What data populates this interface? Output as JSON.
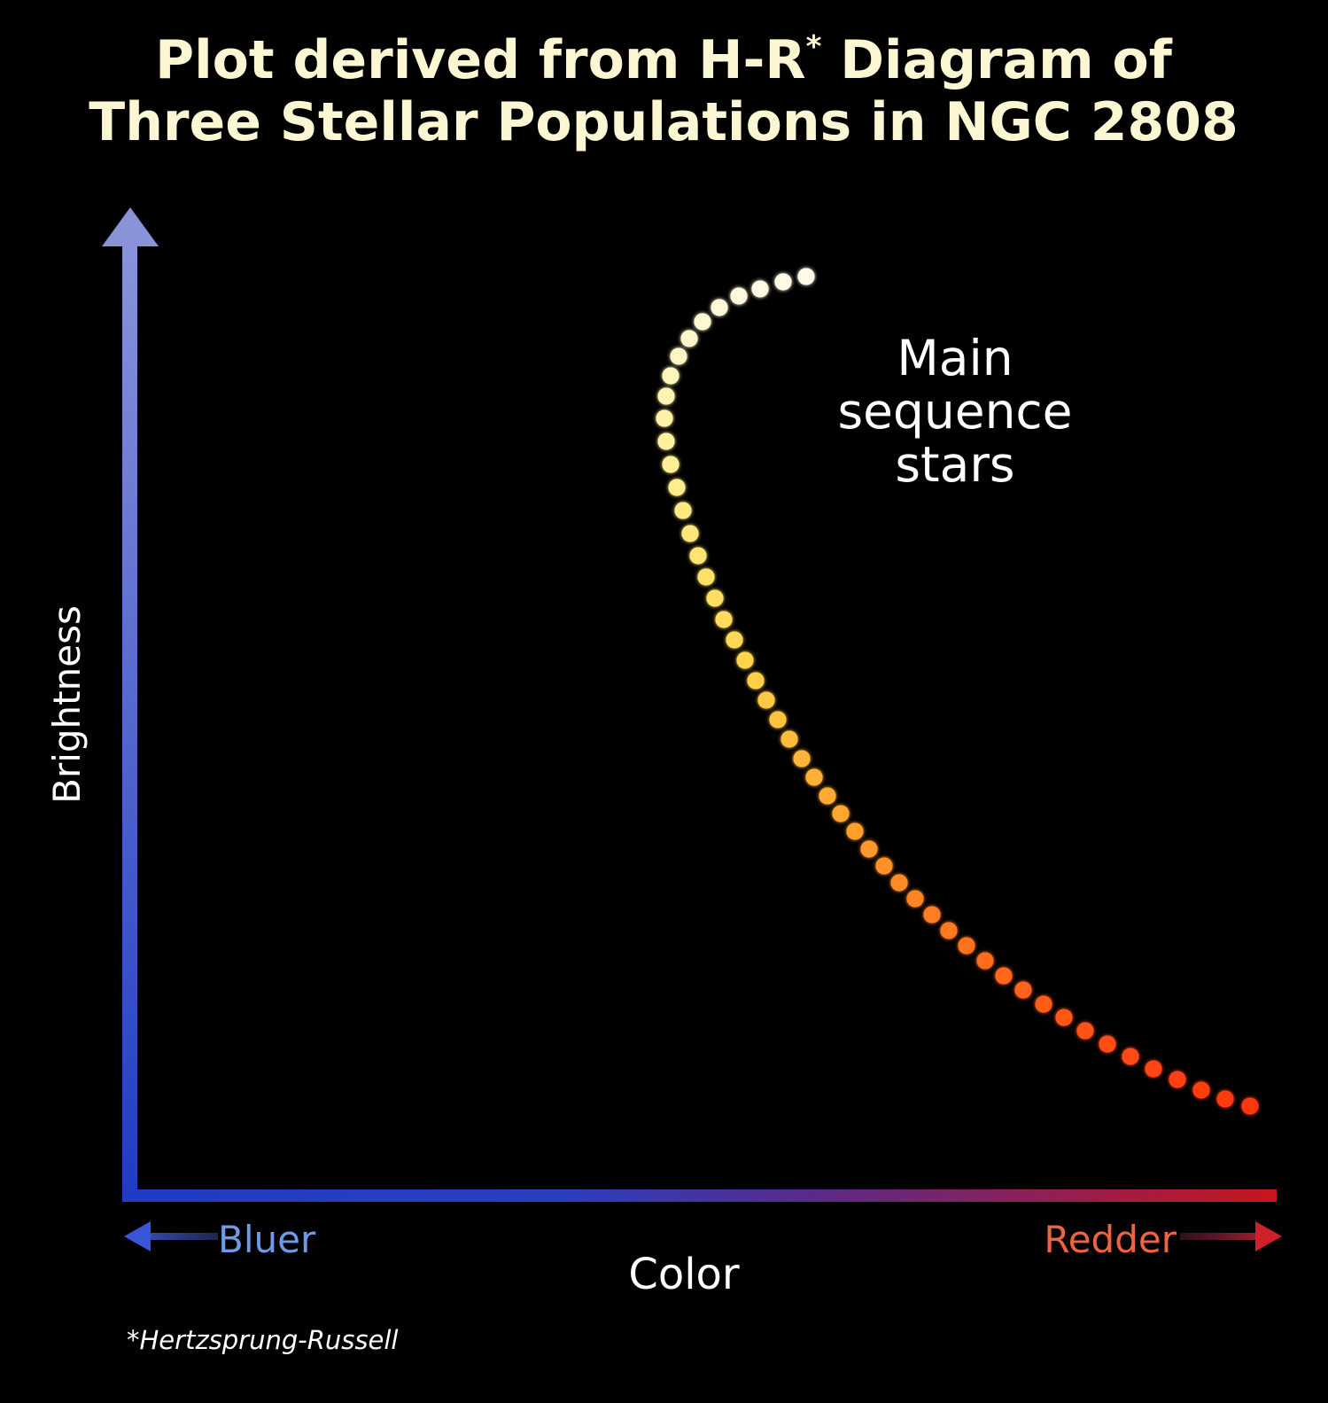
{
  "chart_data": {
    "type": "scatter",
    "title_line1": "Plot derived from H-R",
    "title_sup": "*",
    "title_line1_end": " Diagram of",
    "title_line2": "Three Stellar Populations in NGC 2808",
    "xlabel": "Color",
    "ylabel": "Brightness",
    "x_left_label": "Bluer",
    "x_right_label": "Redder",
    "annotation": [
      "Main",
      "sequence",
      "stars"
    ],
    "footnote": "*Hertzsprung-Russell",
    "grid": false,
    "series": [
      {
        "values": [
          [
            910,
            312
          ],
          [
            884,
            318
          ],
          [
            858,
            326
          ],
          [
            834,
            334
          ],
          [
            812,
            347
          ],
          [
            793,
            363
          ],
          [
            778,
            382
          ],
          [
            766,
            402
          ],
          [
            757,
            424
          ],
          [
            752,
            447
          ],
          [
            750,
            472
          ],
          [
            752,
            498
          ],
          [
            757,
            524
          ],
          [
            764,
            550
          ],
          [
            771,
            576
          ],
          [
            779,
            602
          ],
          [
            788,
            627
          ],
          [
            797,
            651
          ],
          [
            807,
            675
          ],
          [
            817,
            699
          ],
          [
            829,
            722
          ],
          [
            841,
            745
          ],
          [
            853,
            768
          ],
          [
            865,
            790
          ],
          [
            878,
            812
          ],
          [
            891,
            834
          ],
          [
            905,
            856
          ],
          [
            919,
            877
          ],
          [
            934,
            898
          ],
          [
            949,
            918
          ],
          [
            965,
            938
          ],
          [
            981,
            958
          ],
          [
            998,
            977
          ],
          [
            1015,
            996
          ],
          [
            1033,
            1014
          ],
          [
            1052,
            1032
          ],
          [
            1071,
            1050
          ],
          [
            1091,
            1067
          ],
          [
            1112,
            1084
          ],
          [
            1133,
            1101
          ],
          [
            1155,
            1117
          ],
          [
            1178,
            1133
          ],
          [
            1201,
            1148
          ],
          [
            1225,
            1163
          ],
          [
            1250,
            1178
          ],
          [
            1276,
            1192
          ],
          [
            1302,
            1206
          ],
          [
            1329,
            1218
          ],
          [
            1356,
            1230
          ],
          [
            1383,
            1240
          ],
          [
            1411,
            1248
          ]
        ]
      },
      {
        "values": [
          [
            910,
            312
          ],
          [
            884,
            318
          ],
          [
            858,
            326
          ],
          [
            834,
            334
          ],
          [
            812,
            347
          ],
          [
            793,
            363
          ],
          [
            778,
            382
          ],
          [
            766,
            402
          ],
          [
            757,
            424
          ],
          [
            752,
            447
          ],
          [
            750,
            472
          ],
          [
            752,
            498
          ],
          [
            757,
            524
          ],
          [
            764,
            550
          ],
          [
            771,
            576
          ],
          [
            779,
            602
          ],
          [
            788,
            627
          ],
          [
            797,
            651
          ],
          [
            807,
            675
          ],
          [
            817,
            699
          ],
          [
            829,
            722
          ],
          [
            841,
            745
          ],
          [
            853,
            768
          ],
          [
            865,
            790
          ],
          [
            878,
            812
          ],
          [
            891,
            834
          ],
          [
            905,
            856
          ],
          [
            919,
            877
          ],
          [
            934,
            898
          ],
          [
            949,
            918
          ],
          [
            965,
            938
          ],
          [
            981,
            958
          ],
          [
            998,
            977
          ],
          [
            1015,
            996
          ],
          [
            1033,
            1014
          ],
          [
            1052,
            1032
          ],
          [
            1071,
            1050
          ],
          [
            1091,
            1067
          ],
          [
            1112,
            1084
          ],
          [
            1133,
            1101
          ],
          [
            1155,
            1117
          ],
          [
            1178,
            1133
          ],
          [
            1201,
            1148
          ],
          [
            1225,
            1163
          ],
          [
            1250,
            1178
          ],
          [
            1276,
            1192
          ],
          [
            1302,
            1206
          ],
          [
            1329,
            1218
          ],
          [
            1356,
            1230
          ],
          [
            1383,
            1240
          ],
          [
            1411,
            1248
          ]
        ]
      },
      {
        "values": [
          [
            910,
            312
          ],
          [
            884,
            318
          ],
          [
            858,
            326
          ],
          [
            834,
            334
          ],
          [
            812,
            347
          ],
          [
            793,
            363
          ],
          [
            778,
            382
          ],
          [
            766,
            402
          ],
          [
            757,
            424
          ],
          [
            752,
            447
          ],
          [
            750,
            472
          ],
          [
            752,
            498
          ],
          [
            757,
            524
          ],
          [
            764,
            550
          ],
          [
            771,
            576
          ],
          [
            779,
            602
          ],
          [
            788,
            627
          ],
          [
            797,
            651
          ],
          [
            807,
            675
          ],
          [
            817,
            699
          ],
          [
            829,
            722
          ],
          [
            841,
            745
          ],
          [
            853,
            768
          ],
          [
            865,
            790
          ],
          [
            878,
            812
          ],
          [
            891,
            834
          ],
          [
            905,
            856
          ],
          [
            919,
            877
          ],
          [
            934,
            898
          ],
          [
            949,
            918
          ],
          [
            965,
            938
          ],
          [
            981,
            958
          ],
          [
            998,
            977
          ],
          [
            1015,
            996
          ],
          [
            1033,
            1014
          ],
          [
            1052,
            1032
          ],
          [
            1071,
            1050
          ],
          [
            1091,
            1067
          ],
          [
            1112,
            1084
          ],
          [
            1133,
            1101
          ],
          [
            1155,
            1117
          ],
          [
            1178,
            1133
          ],
          [
            1201,
            1148
          ],
          [
            1225,
            1163
          ],
          [
            1250,
            1178
          ],
          [
            1276,
            1192
          ],
          [
            1302,
            1206
          ],
          [
            1329,
            1218
          ],
          [
            1356,
            1230
          ],
          [
            1383,
            1240
          ],
          [
            1411,
            1248
          ]
        ]
      }
    ],
    "colors": {
      "background": "#000000",
      "title": "#fbf7d2",
      "axis_blue_top": "#8a93d8",
      "axis_blue_bottom": "#1f3cc4",
      "axis_red": "#c8151e",
      "bluer": "#6f9ae8",
      "redder": "#ef6440",
      "dot_top": "#fffbe6",
      "dot_mid": "#ffd85a",
      "dot_bottom": "#ff3a10"
    }
  }
}
